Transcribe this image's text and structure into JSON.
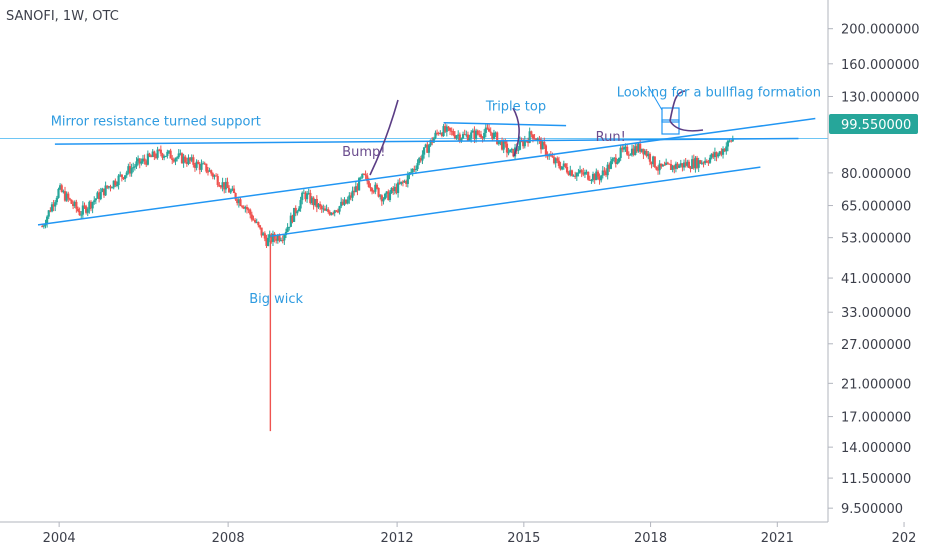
{
  "header": {
    "title": "SANOFI, 1W, OTC"
  },
  "chart_data": {
    "type": "candlestick",
    "title": "SANOFI, 1W, OTC",
    "y_scale": "log",
    "ylim": [
      8.7,
      240
    ],
    "xlim": [
      2002.6,
      2022.2
    ],
    "y_ticks": [
      "200.000000",
      "160.000000",
      "130.000000",
      "80.000000",
      "65.000000",
      "53.000000",
      "41.000000",
      "33.000000",
      "27.000000",
      "21.000000",
      "17.000000",
      "14.000000",
      "11.500000",
      "9.500000"
    ],
    "x_ticks": [
      "2004",
      "2008",
      "2012",
      "2015",
      "2018",
      "2021",
      "202"
    ],
    "last_price": "99.550000",
    "colors": {
      "up": "#26a69a",
      "down": "#ef5350",
      "trend": "#2196f3",
      "price_line": "#6ec6f5",
      "note_blue": "#2e9be0",
      "note_purple": "#6b4d8e"
    },
    "series": [
      {
        "t": 2003.6,
        "p": 57
      },
      {
        "t": 2004.0,
        "p": 72
      },
      {
        "t": 2004.5,
        "p": 62
      },
      {
        "t": 2005.2,
        "p": 74
      },
      {
        "t": 2005.8,
        "p": 84
      },
      {
        "t": 2006.4,
        "p": 91
      },
      {
        "t": 2007.0,
        "p": 87
      },
      {
        "t": 2007.5,
        "p": 82
      },
      {
        "t": 2008.0,
        "p": 72
      },
      {
        "t": 2008.4,
        "p": 65
      },
      {
        "t": 2008.9,
        "p": 52
      },
      {
        "t": 2009.3,
        "p": 54
      },
      {
        "t": 2009.8,
        "p": 70
      },
      {
        "t": 2010.3,
        "p": 62
      },
      {
        "t": 2010.8,
        "p": 66
      },
      {
        "t": 2011.2,
        "p": 78
      },
      {
        "t": 2011.7,
        "p": 68
      },
      {
        "t": 2012.2,
        "p": 76
      },
      {
        "t": 2012.6,
        "p": 90
      },
      {
        "t": 2013.0,
        "p": 105
      },
      {
        "t": 2013.6,
        "p": 101
      },
      {
        "t": 2014.2,
        "p": 104
      },
      {
        "t": 2014.7,
        "p": 90
      },
      {
        "t": 2015.2,
        "p": 103
      },
      {
        "t": 2015.7,
        "p": 86
      },
      {
        "t": 2016.2,
        "p": 80
      },
      {
        "t": 2016.8,
        "p": 78
      },
      {
        "t": 2017.3,
        "p": 91
      },
      {
        "t": 2017.8,
        "p": 94
      },
      {
        "t": 2018.2,
        "p": 82
      },
      {
        "t": 2018.7,
        "p": 84
      },
      {
        "t": 2019.2,
        "p": 86
      },
      {
        "t": 2019.6,
        "p": 90
      },
      {
        "t": 2019.95,
        "p": 99.55
      }
    ],
    "big_wick": {
      "t": 2009.0,
      "low": 15.5,
      "high": 52
    },
    "trendlines": [
      {
        "name": "lower-channel",
        "from": {
          "t": 2009.0,
          "p": 53.5
        },
        "to": {
          "t": 2020.6,
          "p": 83
        }
      },
      {
        "name": "upper-channel",
        "from": {
          "t": 2003.5,
          "p": 57.5
        },
        "to": {
          "t": 2021.9,
          "p": 113
        }
      },
      {
        "name": "mirror-resistance",
        "from": {
          "t": 2003.9,
          "p": 96
        },
        "to": {
          "t": 2021.5,
          "p": 99.55
        }
      },
      {
        "name": "triple-top",
        "from": {
          "t": 2013.1,
          "p": 110
        },
        "to": {
          "t": 2016.0,
          "p": 108
        }
      }
    ],
    "annotations": [
      {
        "text": "Mirror resistance turned support",
        "t": 2003.8,
        "p": 108,
        "color": "blue"
      },
      {
        "text": "Triple top",
        "t": 2014.1,
        "p": 119,
        "color": "blue"
      },
      {
        "text": "Looking for a bullflag formation",
        "t": 2017.2,
        "p": 130,
        "color": "blue"
      },
      {
        "text": "Bump!",
        "t": 2010.7,
        "p": 89,
        "color": "purple"
      },
      {
        "text": "Run!",
        "t": 2016.7,
        "p": 98,
        "color": "purple"
      },
      {
        "text": "Big wick",
        "t": 2008.5,
        "p": 35,
        "color": "blue"
      }
    ]
  }
}
